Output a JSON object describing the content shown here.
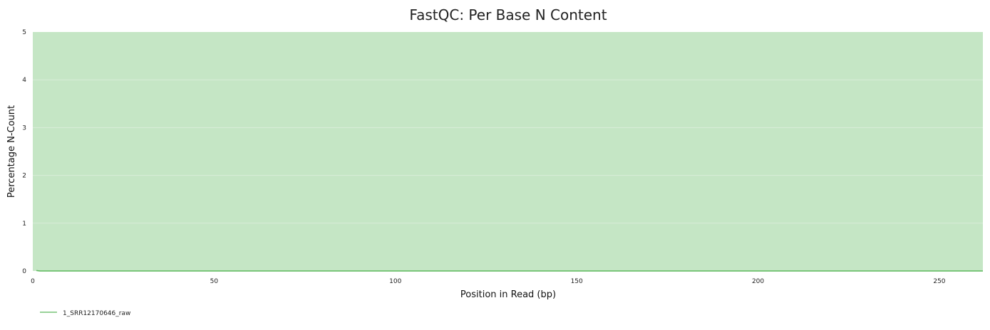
{
  "chart_data": {
    "type": "line",
    "title": "FastQC: Per Base N Content",
    "xlabel": "Position in Read (bp)",
    "ylabel": "Percentage N-Count",
    "xlim": [
      0,
      262
    ],
    "ylim": [
      0,
      5
    ],
    "x_ticks": [
      0,
      50,
      100,
      150,
      200,
      250
    ],
    "y_ticks": [
      0,
      1,
      2,
      3,
      4,
      5
    ],
    "background_band": {
      "from": 0,
      "to": 5,
      "color": "#c5e6c5"
    },
    "grid": true,
    "legend_position": "bottom-left",
    "series": [
      {
        "name": "1_SRR12170646_raw",
        "color": "#5cb85c",
        "x": [
          1,
          2,
          3,
          4,
          5,
          10,
          20,
          50,
          100,
          150,
          200,
          250,
          262
        ],
        "y": [
          0.01,
          0,
          0,
          0,
          0,
          0,
          0,
          0,
          0,
          0,
          0,
          0,
          0
        ]
      }
    ]
  }
}
